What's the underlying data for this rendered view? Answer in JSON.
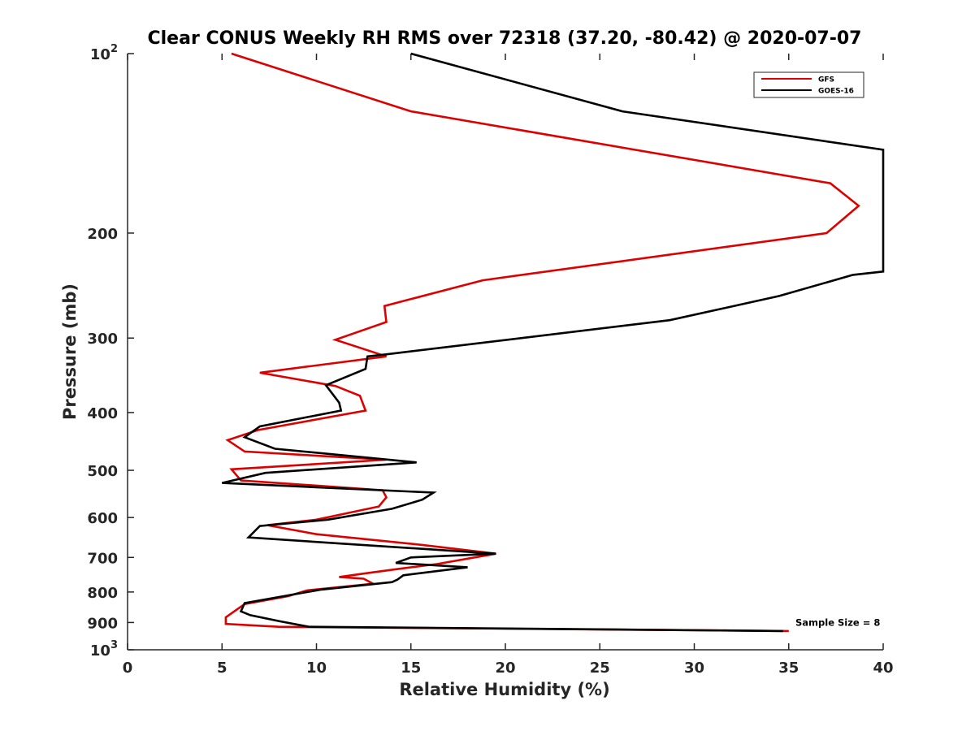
{
  "chart_data": {
    "type": "line",
    "title": "Clear CONUS Weekly RH RMS over 72318 (37.20, -80.42) @ 2020-07-07",
    "xlabel": "Relative Humidity (%)",
    "ylabel": "Pressure (mb)",
    "xlim": [
      0,
      40
    ],
    "ylim": [
      1000,
      100
    ],
    "y_scale": "log",
    "y_reversed": true,
    "grid": false,
    "legend_position": "top-right",
    "x_ticks": [
      "0",
      "5",
      "10",
      "15",
      "20",
      "25",
      "30",
      "35",
      "40"
    ],
    "y_ticks": [
      {
        "value": 100,
        "base": "10",
        "exp": "2"
      },
      {
        "value": 200,
        "base": "200",
        "exp": ""
      },
      {
        "value": 300,
        "base": "300",
        "exp": ""
      },
      {
        "value": 400,
        "base": "400",
        "exp": ""
      },
      {
        "value": 500,
        "base": "500",
        "exp": ""
      },
      {
        "value": 600,
        "base": "600",
        "exp": ""
      },
      {
        "value": 700,
        "base": "700",
        "exp": ""
      },
      {
        "value": 800,
        "base": "800",
        "exp": ""
      },
      {
        "value": 900,
        "base": "900",
        "exp": ""
      },
      {
        "value": 1000,
        "base": "10",
        "exp": "3"
      }
    ],
    "series": [
      {
        "name": "GFS",
        "color": "#dd0000",
        "points": [
          [
            5.5,
            100
          ],
          [
            15.0,
            125
          ],
          [
            37.2,
            165
          ],
          [
            38.7,
            180
          ],
          [
            37.0,
            200
          ],
          [
            18.8,
            240
          ],
          [
            13.6,
            265
          ],
          [
            13.7,
            282
          ],
          [
            11.0,
            302
          ],
          [
            13.7,
            322
          ],
          [
            7.0,
            343
          ],
          [
            11.0,
            361
          ],
          [
            12.3,
            375
          ],
          [
            12.6,
            397
          ],
          [
            6.9,
            428
          ],
          [
            5.3,
            445
          ],
          [
            6.2,
            465
          ],
          [
            13.7,
            480
          ],
          [
            5.5,
            498
          ],
          [
            6.0,
            520
          ],
          [
            13.5,
            540
          ],
          [
            13.7,
            555
          ],
          [
            13.3,
            575
          ],
          [
            10.0,
            605
          ],
          [
            7.4,
            618
          ],
          [
            10.0,
            640
          ],
          [
            15.6,
            667
          ],
          [
            19.5,
            690
          ],
          [
            16.4,
            718
          ],
          [
            14.3,
            732
          ],
          [
            12.5,
            745
          ],
          [
            11.2,
            755
          ],
          [
            12.5,
            760
          ],
          [
            13.0,
            775
          ],
          [
            9.5,
            795
          ],
          [
            8.5,
            813
          ],
          [
            6.2,
            838
          ],
          [
            5.2,
            882
          ],
          [
            5.2,
            905
          ],
          [
            8.0,
            915
          ],
          [
            35.0,
            930
          ]
        ]
      },
      {
        "name": "GOES-16",
        "color": "#000000",
        "points": [
          [
            15.0,
            100
          ],
          [
            26.2,
            125
          ],
          [
            40.0,
            145
          ],
          [
            40.0,
            232
          ],
          [
            38.4,
            235
          ],
          [
            34.5,
            255
          ],
          [
            28.7,
            280
          ],
          [
            13.5,
            320
          ],
          [
            12.7,
            322
          ],
          [
            12.6,
            338
          ],
          [
            10.5,
            360
          ],
          [
            11.2,
            385
          ],
          [
            11.3,
            397
          ],
          [
            7.0,
            422
          ],
          [
            6.2,
            440
          ],
          [
            7.8,
            460
          ],
          [
            15.3,
            485
          ],
          [
            7.3,
            505
          ],
          [
            5.0,
            525
          ],
          [
            16.2,
            545
          ],
          [
            15.6,
            560
          ],
          [
            14.0,
            580
          ],
          [
            10.6,
            605
          ],
          [
            7.0,
            620
          ],
          [
            6.4,
            648
          ],
          [
            19.5,
            690
          ],
          [
            15.0,
            700
          ],
          [
            14.2,
            715
          ],
          [
            18.0,
            727
          ],
          [
            14.6,
            750
          ],
          [
            14.3,
            762
          ],
          [
            14.0,
            770
          ],
          [
            10.2,
            793
          ],
          [
            6.2,
            835
          ],
          [
            6.0,
            862
          ],
          [
            6.5,
            875
          ],
          [
            8.0,
            895
          ],
          [
            9.6,
            915
          ],
          [
            34.7,
            930
          ]
        ]
      }
    ],
    "annotations": [
      {
        "text": "Sample Size = 8",
        "x": 37.6,
        "y": 900
      }
    ]
  }
}
